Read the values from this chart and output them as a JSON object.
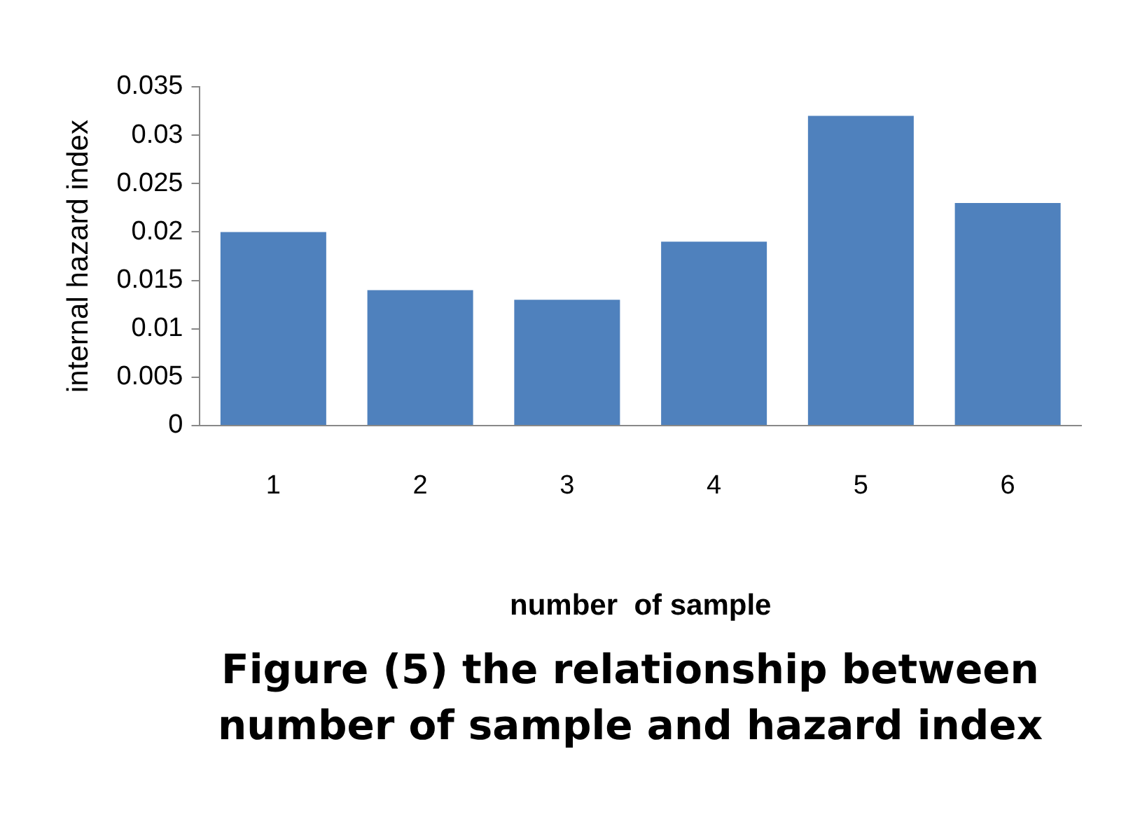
{
  "chart_data": {
    "type": "bar",
    "xlabel": "number  of sample",
    "ylabel": "internal hazard index",
    "categories": [
      "1",
      "2",
      "3",
      "4",
      "5",
      "6"
    ],
    "values": [
      0.02,
      0.014,
      0.013,
      0.019,
      0.032,
      0.023
    ],
    "color": "#4f81bd",
    "ylim": [
      0,
      0.035
    ],
    "yticks": [
      0,
      0.005,
      0.01,
      0.015,
      0.02,
      0.025,
      0.03,
      0.035
    ],
    "grid": false,
    "legend": false,
    "annotations": [
      "Figure (5) the relationship between number of sample and hazard index"
    ]
  }
}
